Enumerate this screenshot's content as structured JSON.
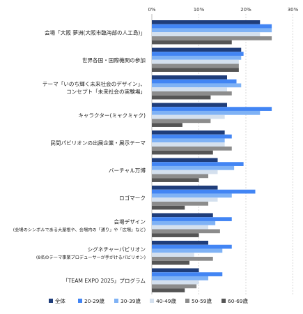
{
  "chart_data": {
    "type": "bar",
    "orientation": "horizontal",
    "title": "",
    "xlabel": "",
    "ylabel": "",
    "xlim": [
      0,
      30
    ],
    "x_ticks": [
      "0%",
      "10%",
      "20%",
      "30%"
    ],
    "grid": true,
    "legend_position": "bottom",
    "categories": [
      "会場「大阪 夢洲(大阪市臨海部の人工島)」",
      "世界各国・国際機関の参加",
      "テーマ「いのち輝く未来社会のデザイン」、コンセプト「未来社会の実験場」",
      "キャラクター(ミャクミャク)",
      "民間パビリオンの出展企業・展示テーマ",
      "バーチャル万博",
      "ロゴマーク",
      "会場デザイン(会場のシンボルである大屋根や、会場内の「通り」や「広場」など)",
      "シグネチャーパビリオン(8名のテーマ事業プロデューサーが手がけるパビリオン)",
      "「TEAM EXPO 2025」プログラム"
    ],
    "category_lines": [
      [
        {
          "t": "会場「大阪 夢洲(大阪市臨海部の人工島)」",
          "s": 0
        }
      ],
      [
        {
          "t": "世界各国・国際機関の参加",
          "s": 0
        }
      ],
      [
        {
          "t": "テーマ「いのち輝く未来社会のデザイン」、",
          "s": 0
        },
        {
          "t": "コンセプト「未来社会の実験場」",
          "s": 0
        }
      ],
      [
        {
          "t": "キャラクター(ミャクミャク)",
          "s": 0
        }
      ],
      [
        {
          "t": "民間パビリオンの出展企業・展示テーマ",
          "s": 0
        }
      ],
      [
        {
          "t": "バーチャル万博",
          "s": 0
        }
      ],
      [
        {
          "t": "ロゴマーク",
          "s": 0
        }
      ],
      [
        {
          "t": "会場デザイン",
          "s": 0
        },
        {
          "t": "(会場のシンボルである大屋根や、会場内の「通り」や「広場」など)",
          "s": 1
        }
      ],
      [
        {
          "t": "シグネチャーパビリオン",
          "s": 0
        },
        {
          "t": "(8名のテーマ事業プロデューサーが手がけるパビリオン)",
          "s": 1
        }
      ],
      [
        {
          "t": "「TEAM EXPO 2025」プログラム",
          "s": 0
        }
      ]
    ],
    "series": [
      {
        "name": "全体",
        "color": "#1f3d7a",
        "values": [
          23.0,
          19.0,
          16.0,
          16.0,
          15.5,
          14.0,
          14.0,
          13.0,
          12.0,
          10.0
        ]
      },
      {
        "name": "20-29歳",
        "color": "#4285f4",
        "values": [
          25.5,
          19.5,
          18.0,
          25.5,
          17.0,
          19.5,
          22.0,
          17.0,
          17.0,
          15.0
        ]
      },
      {
        "name": "30-39歳",
        "color": "#7fb2f5",
        "values": [
          25.5,
          19.0,
          19.0,
          23.0,
          15.5,
          17.5,
          17.0,
          13.5,
          15.0,
          12.0
        ]
      },
      {
        "name": "40-49歳",
        "color": "#d4e0ee",
        "values": [
          23.0,
          18.5,
          16.0,
          15.5,
          15.5,
          14.0,
          14.0,
          12.0,
          9.0,
          10.0
        ]
      },
      {
        "name": "50-59歳",
        "color": "#8c8c8c",
        "values": [
          25.5,
          18.5,
          17.0,
          12.5,
          17.0,
          12.0,
          12.0,
          14.5,
          13.0,
          9.5
        ]
      },
      {
        "name": "60-69歳",
        "color": "#555555",
        "values": [
          17.0,
          18.5,
          12.5,
          6.5,
          13.0,
          10.0,
          7.0,
          10.0,
          8.0,
          7.0
        ]
      }
    ]
  }
}
